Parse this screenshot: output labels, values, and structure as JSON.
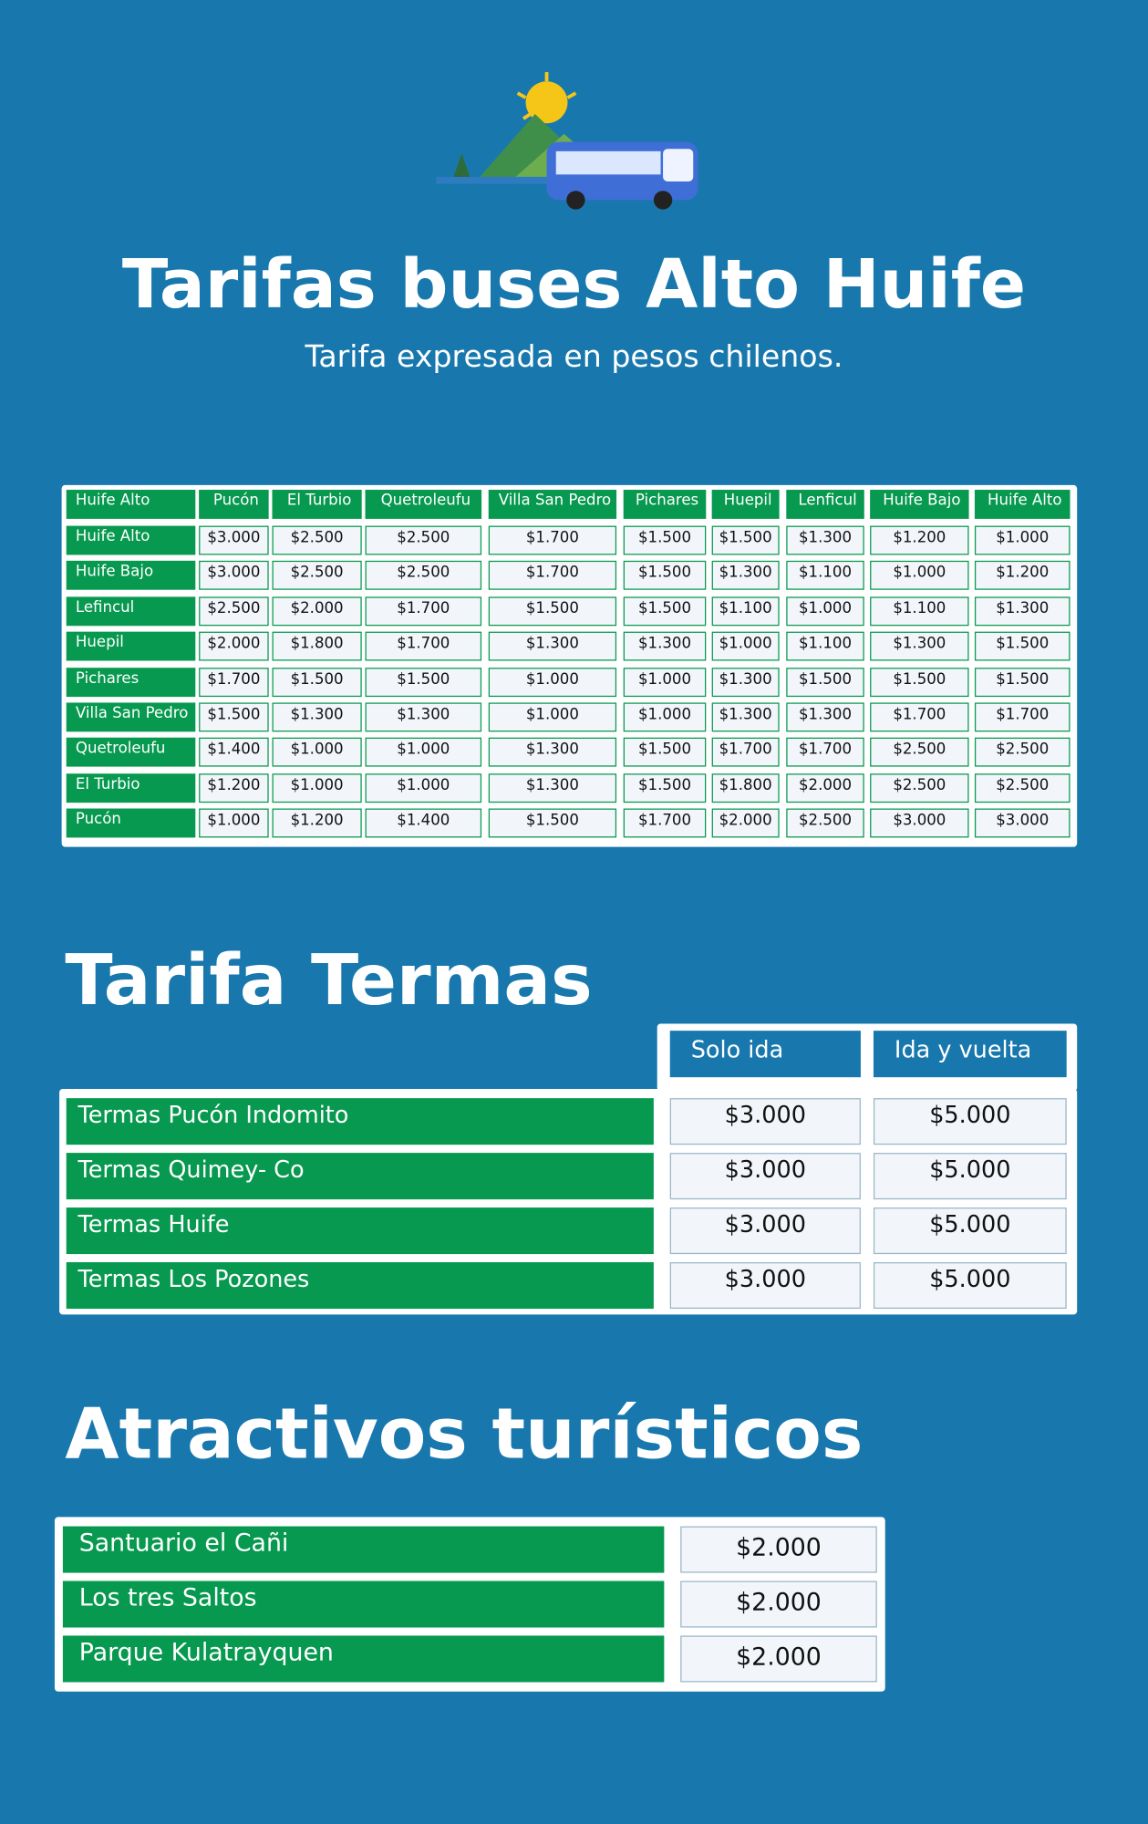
{
  "header": {
    "title": "Tarifas buses Alto Huife",
    "subtitle": "Tarifa expresada en pesos chilenos."
  },
  "buses": {
    "columns": [
      "Huife Alto",
      "Pucón",
      "El Turbio",
      "Quetroleufu",
      "Villa San Pedro",
      "Pichares",
      "Huepil",
      "Lenficul",
      "Huife Bajo",
      "Huife Alto"
    ],
    "rows": [
      {
        "label": "Huife Alto",
        "cells": [
          "$3.000",
          "$2.500",
          "$2.500",
          "$1.700",
          "$1.500",
          "$1.500",
          "$1.300",
          "$1.200",
          "$1.000"
        ]
      },
      {
        "label": "Huife Bajo",
        "cells": [
          "$3.000",
          "$2.500",
          "$2.500",
          "$1.700",
          "$1.500",
          "$1.300",
          "$1.100",
          "$1.000",
          "$1.200"
        ]
      },
      {
        "label": "Lefincul",
        "cells": [
          "$2.500",
          "$2.000",
          "$1.700",
          "$1.500",
          "$1.500",
          "$1.100",
          "$1.000",
          "$1.100",
          "$1.300"
        ]
      },
      {
        "label": "Huepil",
        "cells": [
          "$2.000",
          "$1.800",
          "$1.700",
          "$1.300",
          "$1.300",
          "$1.000",
          "$1.100",
          "$1.300",
          "$1.500"
        ]
      },
      {
        "label": "Pichares",
        "cells": [
          "$1.700",
          "$1.500",
          "$1.500",
          "$1.000",
          "$1.000",
          "$1.300",
          "$1.500",
          "$1.500",
          "$1.500"
        ]
      },
      {
        "label": "Villa San Pedro",
        "cells": [
          "$1.500",
          "$1.300",
          "$1.300",
          "$1.000",
          "$1.000",
          "$1.300",
          "$1.300",
          "$1.700",
          "$1.700"
        ]
      },
      {
        "label": "Quetroleufu",
        "cells": [
          "$1.400",
          "$1.000",
          "$1.000",
          "$1.300",
          "$1.500",
          "$1.700",
          "$1.700",
          "$2.500",
          "$2.500"
        ]
      },
      {
        "label": "El Turbio",
        "cells": [
          "$1.200",
          "$1.000",
          "$1.000",
          "$1.300",
          "$1.500",
          "$1.800",
          "$2.000",
          "$2.500",
          "$2.500"
        ]
      },
      {
        "label": "Pucón",
        "cells": [
          "$1.000",
          "$1.200",
          "$1.400",
          "$1.500",
          "$1.700",
          "$2.000",
          "$2.500",
          "$3.000",
          "$3.000"
        ]
      }
    ]
  },
  "termas": {
    "title": "Tarifa Termas",
    "columns": [
      "Solo ida",
      "Ida y vuelta"
    ],
    "rows": [
      {
        "label": "Termas Pucón Indomito",
        "cells": [
          "$3.000",
          "$5.000"
        ]
      },
      {
        "label": "Termas Quimey- Co",
        "cells": [
          "$3.000",
          "$5.000"
        ]
      },
      {
        "label": "Termas Huife",
        "cells": [
          "$3.000",
          "$5.000"
        ]
      },
      {
        "label": "Termas Los Pozones",
        "cells": [
          "$3.000",
          "$5.000"
        ]
      }
    ]
  },
  "atractivos": {
    "title": "Atractivos turísticos",
    "rows": [
      {
        "label": "Santuario el Cañi",
        "price": "$2.000"
      },
      {
        "label": "Los tres Saltos",
        "price": "$2.000"
      },
      {
        "label": "Parque Kulatrayquen",
        "price": "$2.000"
      }
    ]
  }
}
